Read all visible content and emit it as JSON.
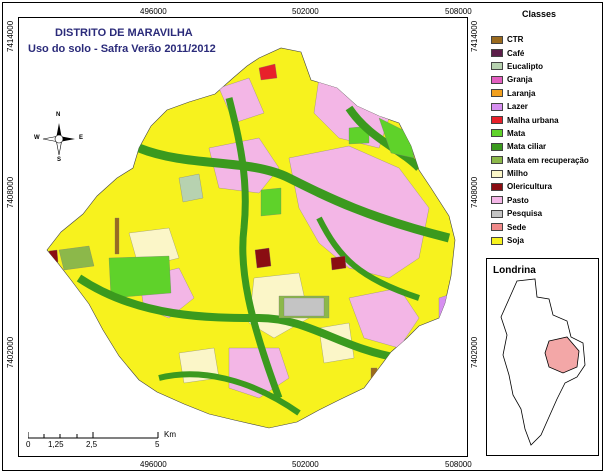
{
  "map": {
    "title_line1": "DISTRITO DE MARAVILHA",
    "title_line2": "Uso do solo - Safra Verão 2011/2012",
    "easting_top": [
      "496000",
      "502000",
      "508000"
    ],
    "easting_bottom": [
      "496000",
      "502000",
      "508000"
    ],
    "northing_left": [
      "7414000",
      "7408000",
      "7402000"
    ],
    "northing_right": [
      "7414000",
      "7408000",
      "7402000"
    ],
    "compass": {
      "n": "N",
      "s": "S",
      "e": "E",
      "w": "W"
    }
  },
  "scalebar": {
    "labels": [
      "0",
      "1,25",
      "2,5",
      "5"
    ],
    "unit": "Km"
  },
  "legend": {
    "title": "Classes",
    "items": [
      {
        "label": "CTR",
        "color": "#9a6a1e"
      },
      {
        "label": "Café",
        "color": "#5c1e4a"
      },
      {
        "label": "Eucalipto",
        "color": "#b7d2b0"
      },
      {
        "label": "Granja",
        "color": "#e35fc0"
      },
      {
        "label": "Laranja",
        "color": "#f2a01e"
      },
      {
        "label": "Lazer",
        "color": "#d68ff0"
      },
      {
        "label": "Malha urbana",
        "color": "#e8202a"
      },
      {
        "label": "Mata",
        "color": "#5fd22a"
      },
      {
        "label": "Mata ciliar",
        "color": "#3b9a1e"
      },
      {
        "label": "Mata em recuperação",
        "color": "#8cb84a"
      },
      {
        "label": "Milho",
        "color": "#fbf6c8"
      },
      {
        "label": "Olericultura",
        "color": "#8a0d12"
      },
      {
        "label": "Pasto",
        "color": "#f3b6e6"
      },
      {
        "label": "Pesquisa",
        "color": "#c4c4c4"
      },
      {
        "label": "Sede",
        "color": "#f08a8a"
      },
      {
        "label": "Soja",
        "color": "#f7f21e"
      }
    ]
  },
  "inset": {
    "title": "Londrina",
    "highlight_color": "#f3a7a7"
  }
}
